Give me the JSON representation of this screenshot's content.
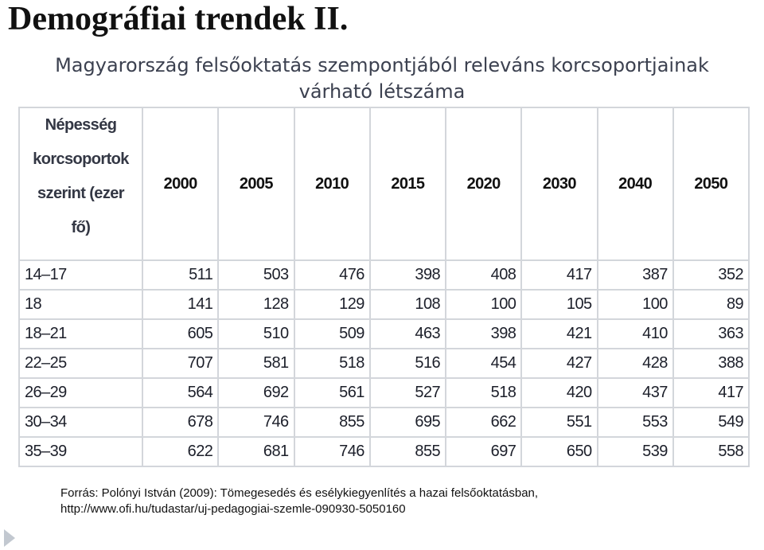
{
  "title": "Demográfiai trendek II.",
  "subtitle": {
    "line1": "Magyarország felsőoktatás szempontjából releváns korcsoportjainak",
    "line2": "várható létszáma"
  },
  "table": {
    "corner_header": [
      "Népesség",
      "korcsoportok",
      "szerint (ezer",
      "fő)"
    ],
    "years": [
      "2000",
      "2005",
      "2010",
      "2015",
      "2020",
      "2030",
      "2040",
      "2050"
    ],
    "rows": [
      {
        "age": "14–17",
        "values": [
          "511",
          "503",
          "476",
          "398",
          "408",
          "417",
          "387",
          "352"
        ]
      },
      {
        "age": "18",
        "values": [
          "141",
          "128",
          "129",
          "108",
          "100",
          "105",
          "100",
          "89"
        ]
      },
      {
        "age": "18–21",
        "values": [
          "605",
          "510",
          "509",
          "463",
          "398",
          "421",
          "410",
          "363"
        ]
      },
      {
        "age": "22–25",
        "values": [
          "707",
          "581",
          "518",
          "516",
          "454",
          "427",
          "428",
          "388"
        ]
      },
      {
        "age": "26–29",
        "values": [
          "564",
          "692",
          "561",
          "527",
          "518",
          "420",
          "437",
          "417"
        ]
      },
      {
        "age": "30–34",
        "values": [
          "678",
          "746",
          "855",
          "695",
          "662",
          "551",
          "553",
          "549"
        ]
      },
      {
        "age": "35–39",
        "values": [
          "622",
          "681",
          "746",
          "855",
          "697",
          "650",
          "539",
          "558"
        ]
      }
    ]
  },
  "source": {
    "line1": "Forrás: Polónyi István (2009): Tömegesedés és esélykiegyenlítés a hazai felsőoktatásban,",
    "line2": "http://www.ofi.hu/tudastar/uj-pedagogiai-szemle-090930-5050160"
  },
  "nav_icon": "arrow-right-icon"
}
